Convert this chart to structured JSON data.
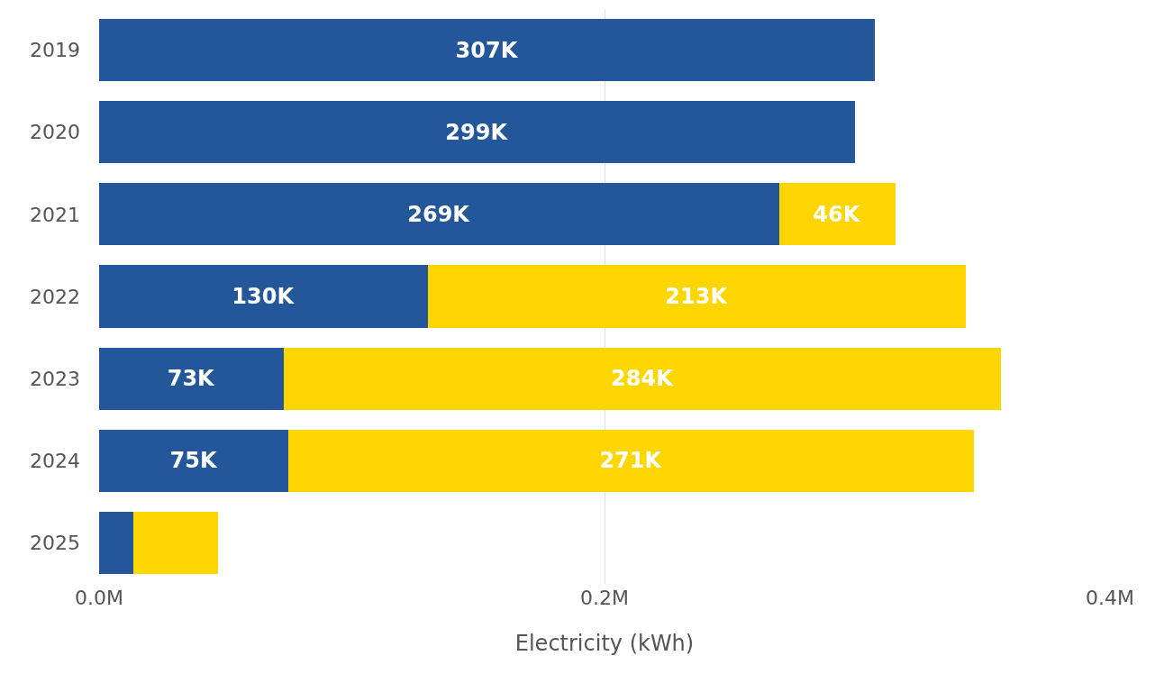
{
  "chart_data": {
    "type": "bar",
    "orientation": "horizontal",
    "stacked": true,
    "xlabel": "Electricity (kWh)",
    "categories": [
      "2019",
      "2020",
      "2021",
      "2022",
      "2023",
      "2024",
      "2025"
    ],
    "series": [
      {
        "color": "#23579a",
        "values": [
          307000,
          299000,
          269000,
          130000,
          73000,
          75000,
          13500
        ],
        "value_labels": [
          "307K",
          "299K",
          "269K",
          "130K",
          "73K",
          "75K",
          null
        ]
      },
      {
        "color": "#fdd600",
        "values": [
          null,
          null,
          46000,
          213000,
          284000,
          271000,
          33500
        ],
        "value_labels": [
          null,
          null,
          "46K",
          "213K",
          "284K",
          "271K",
          null
        ]
      }
    ],
    "xlim": [
      0,
      400000
    ],
    "xticks": [
      {
        "value": 0,
        "label": "0.0M"
      },
      {
        "value": 200000,
        "label": "0.2M"
      },
      {
        "value": 400000,
        "label": "0.4M"
      }
    ],
    "grid": "x"
  }
}
